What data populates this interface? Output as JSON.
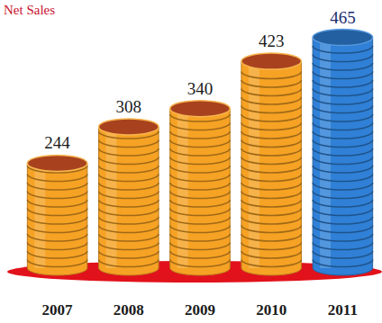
{
  "chart_data": {
    "type": "bar",
    "title": "Net Sales",
    "categories": [
      "2007",
      "2008",
      "2009",
      "2010",
      "2011"
    ],
    "values": [
      244,
      308,
      340,
      423,
      465
    ],
    "colors": [
      "#f6a224",
      "#f6a224",
      "#f6a224",
      "#f6a224",
      "#2f80d6"
    ],
    "ylim": [
      60,
      480
    ],
    "tick_labels": false,
    "data_labels": true,
    "grid": false
  }
}
